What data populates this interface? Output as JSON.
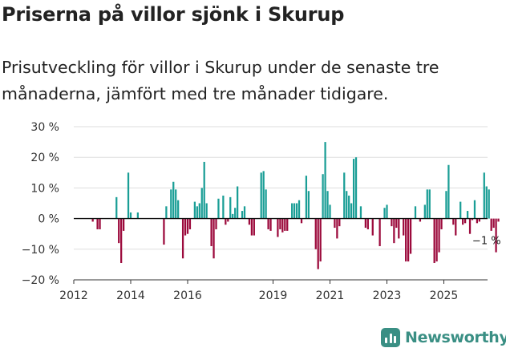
{
  "title": "Priserna på villor sjönk i Skurup",
  "subtitle": "Prisutveckling för villor i Skurup under de senaste tre månaderna, jämfört med tre månader tidigare.",
  "brand": "Newsworthy",
  "colors": {
    "positive": "#1a9e96",
    "negative": "#9c0a3c",
    "grid": "#dddddd",
    "axis": "#333333",
    "brand": "#3a8f84"
  },
  "chart_data": {
    "type": "bar",
    "title": "Prisutveckling för villor i Skurup",
    "xlabel": "",
    "ylabel": "",
    "ylim": [
      -20,
      30
    ],
    "yticks": [
      -20,
      -10,
      0,
      10,
      20,
      30
    ],
    "ytick_labels": [
      "−20 %",
      "−10 %",
      "0 %",
      "10 %",
      "20 %",
      "30 %"
    ],
    "x_start": 2012.0,
    "x_step": 0.0833,
    "xticks": [
      2012,
      2014,
      2016,
      2019,
      2021,
      2023,
      2025
    ],
    "xtick_labels": [
      "2012",
      "2014",
      "2016",
      "2019",
      "2021",
      "2023",
      "2025"
    ],
    "annotation": {
      "text": "−1 %",
      "x": 2026.5,
      "y": -1
    },
    "values": [
      0,
      0,
      0,
      0,
      0,
      0,
      0,
      0,
      -1,
      0,
      -3.5,
      -3.5,
      0,
      0,
      0,
      0,
      0,
      0,
      7,
      -8,
      -14.5,
      -4,
      0,
      15,
      2,
      0,
      0,
      2,
      0,
      0,
      0,
      0,
      0,
      0,
      0,
      0,
      0,
      0,
      -8.5,
      4,
      0,
      9.5,
      12,
      9.5,
      6,
      0,
      -13,
      -5.5,
      -5,
      -3.5,
      0,
      5.5,
      4,
      5,
      10,
      18.5,
      5,
      0,
      -9,
      -13,
      -3.5,
      6.5,
      0,
      7.5,
      -2,
      -1,
      7,
      1.5,
      3.5,
      10.5,
      0,
      2.5,
      4,
      0,
      -2,
      -5.5,
      -5.5,
      0,
      0,
      15,
      15.5,
      9.5,
      -3.5,
      -4,
      0,
      0,
      -6,
      -3.5,
      -4.5,
      -4,
      -4,
      0,
      5,
      5,
      5,
      6,
      -1.5,
      0,
      14,
      9,
      0,
      0,
      -10,
      -16.5,
      -14,
      14.5,
      25,
      9,
      4.5,
      0,
      -3,
      -6.5,
      -2.5,
      0,
      15,
      9,
      7.5,
      5,
      19.5,
      20,
      0,
      4,
      0,
      -3,
      -3.5,
      0,
      -5.5,
      0,
      0,
      -9,
      0,
      3.5,
      4.5,
      0,
      -2.5,
      -8,
      -3,
      -6.5,
      0,
      -5.5,
      -14,
      -14,
      -11.5,
      0,
      4,
      0,
      -1,
      0,
      4.5,
      9.5,
      9.5,
      0,
      -14.5,
      -14,
      -11,
      -3.5,
      0,
      9,
      17.5,
      0,
      -2,
      -5.5,
      0,
      5.5,
      -2,
      -1.5,
      2.5,
      -5,
      -0.5,
      6,
      -1.5,
      -1,
      0,
      15,
      10.5,
      9.5,
      -4,
      -3,
      -11,
      -1
    ]
  }
}
